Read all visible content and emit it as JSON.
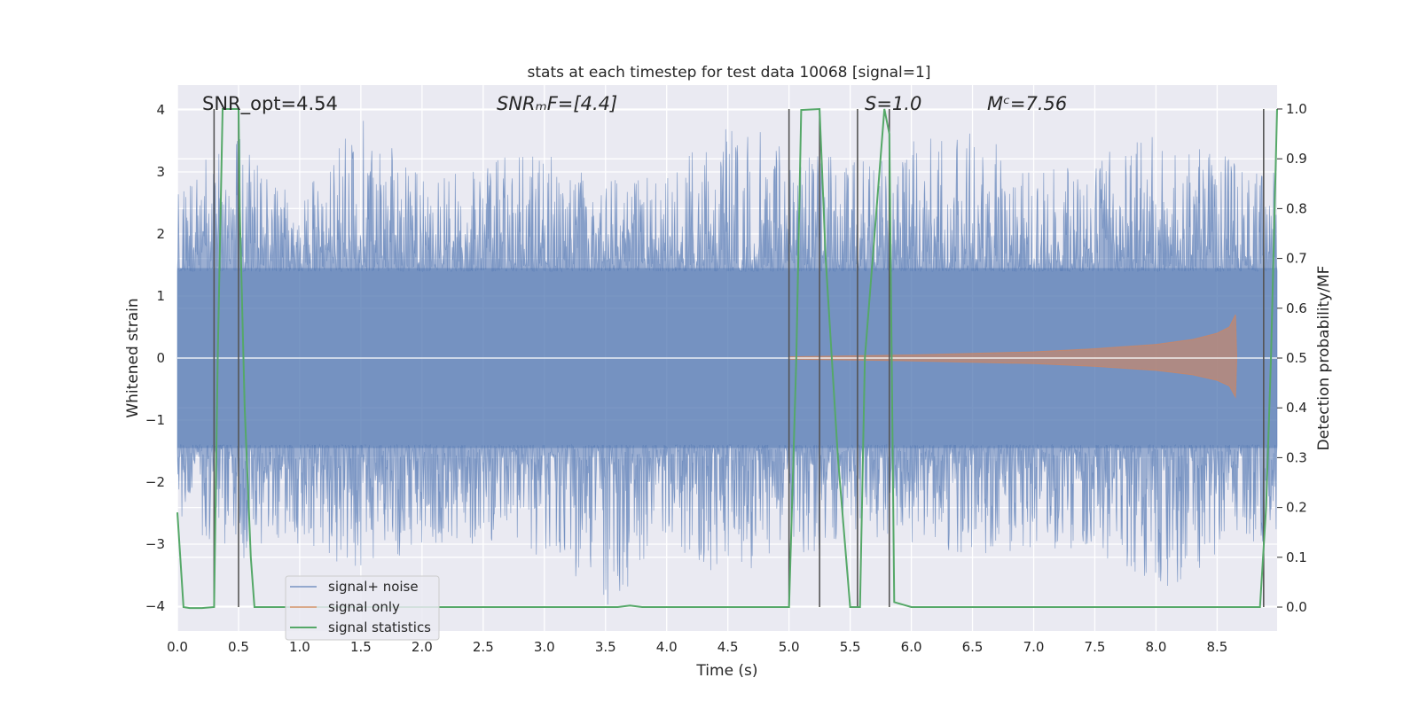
{
  "chart_data": {
    "type": "line",
    "title": "stats at each timestep for test data 10068 [signal=1]",
    "xlabel": "Time (s)",
    "ylabel": "Whitened strain",
    "y2label": "Detection probability/MF",
    "xlim": [
      0.0,
      8.99
    ],
    "ylim": [
      -4.4,
      4.4
    ],
    "y2lim": [
      -0.048,
      1.048
    ],
    "x_ticks": [
      "0.0",
      "0.5",
      "1.0",
      "1.5",
      "2.0",
      "2.5",
      "3.0",
      "3.5",
      "4.0",
      "4.5",
      "5.0",
      "5.5",
      "6.0",
      "6.5",
      "7.0",
      "7.5",
      "8.0",
      "8.5"
    ],
    "y_ticks": [
      "4",
      "3",
      "2",
      "1",
      "0",
      "−1",
      "−2",
      "−3",
      "−4"
    ],
    "y2_ticks": [
      "1.0",
      "0.9",
      "0.8",
      "0.7",
      "0.6",
      "0.5",
      "0.4",
      "0.3",
      "0.2",
      "0.1",
      "0.0"
    ],
    "grid": true,
    "legend_position": "lower-left",
    "annotations": {
      "snr_opt": "SNR_opt=4.54",
      "snr_mf": "SNRₘF=[4.4]",
      "s": "S=1.0",
      "mc": "Mᶜ=7.56"
    },
    "series": [
      {
        "name": "signal+ noise",
        "color": "#4c72b0",
        "envelope": {
          "x": [
            0.0,
            0.5,
            1.0,
            1.5,
            2.0,
            2.5,
            3.0,
            3.5,
            4.0,
            4.5,
            5.0,
            5.5,
            6.0,
            6.5,
            7.0,
            7.5,
            8.0,
            8.5,
            8.99
          ],
          "upper": [
            3.0,
            3.6,
            2.6,
            3.9,
            2.9,
            3.2,
            3.3,
            3.0,
            2.9,
            4.0,
            3.5,
            3.3,
            3.5,
            3.8,
            3.1,
            3.3,
            3.6,
            3.3,
            3.0
          ],
          "lower": [
            -2.6,
            -3.3,
            -3.0,
            -3.5,
            -3.0,
            -3.0,
            -3.2,
            -4.1,
            -3.0,
            -3.6,
            -3.2,
            -3.1,
            -3.0,
            -3.3,
            -3.1,
            -3.1,
            -3.8,
            -3.3,
            -2.9
          ]
        }
      },
      {
        "name": "signal only",
        "color": "#dd8452",
        "envelope": {
          "x": [
            5.0,
            6.0,
            7.0,
            7.5,
            8.0,
            8.3,
            8.5,
            8.6,
            8.65,
            8.66
          ],
          "amplitude": [
            0.02,
            0.05,
            0.1,
            0.15,
            0.22,
            0.3,
            0.4,
            0.5,
            0.7,
            0.0
          ]
        }
      },
      {
        "name": "signal statistics",
        "color": "#55a868",
        "axis": "right",
        "x": [
          0.0,
          0.05,
          0.1,
          0.2,
          0.3,
          0.33,
          0.37,
          0.5,
          0.51,
          0.55,
          0.6,
          0.63,
          1.0,
          2.0,
          3.0,
          3.6,
          3.7,
          3.8,
          4.0,
          4.5,
          5.0,
          5.06,
          5.1,
          5.25,
          5.3,
          5.4,
          5.5,
          5.58,
          5.62,
          5.78,
          5.82,
          5.86,
          6.0,
          7.0,
          8.0,
          8.85,
          8.9,
          8.94,
          8.99
        ],
        "values": [
          0.19,
          0.0,
          -0.002,
          -0.002,
          0.0,
          0.5,
          1.0,
          1.0,
          0.8,
          0.4,
          0.1,
          0.0,
          0.0,
          0.0,
          0.0,
          0.0,
          0.003,
          0.0,
          0.0,
          0.0,
          0.0,
          0.5,
          0.998,
          1.0,
          0.7,
          0.3,
          0.0,
          0.0,
          0.5,
          1.0,
          0.95,
          0.01,
          0.0,
          0.0,
          0.0,
          0.0,
          0.2,
          0.5,
          1.0
        ]
      }
    ],
    "vertical_markers": [
      0.3,
      0.5,
      5.0,
      5.25,
      5.56,
      5.82,
      8.88
    ]
  }
}
